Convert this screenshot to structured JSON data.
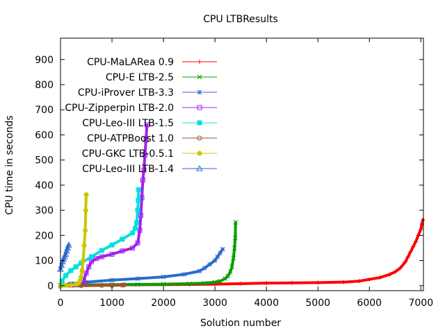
{
  "chart_data": {
    "type": "line",
    "title": "CPU LTBResults",
    "xlabel": "Solution number",
    "ylabel": "CPU time in seconds",
    "xlim": [
      0,
      7050
    ],
    "ylim": [
      -20,
      985
    ],
    "x_ticks": [
      0,
      1000,
      2000,
      3000,
      4000,
      5000,
      6000,
      7000
    ],
    "y_ticks": [
      0,
      100,
      200,
      300,
      400,
      500,
      600,
      700,
      800,
      900
    ],
    "legend_position": "top-left",
    "grid": false,
    "series": [
      {
        "name": "CPU-MaLARea 0.9",
        "color": "#ff0000",
        "marker": "plus",
        "x": [
          0,
          500,
          1000,
          2000,
          2500,
          3000,
          3500,
          4000,
          4500,
          5000,
          5500,
          5800,
          6000,
          6200,
          6400,
          6500,
          6600,
          6700,
          6750,
          6800,
          6850,
          6900,
          6950,
          7000,
          7020,
          7040
        ],
        "y": [
          0,
          2,
          3,
          4,
          5,
          6,
          8,
          10,
          11,
          12,
          14,
          18,
          25,
          32,
          45,
          55,
          70,
          95,
          115,
          135,
          155,
          175,
          200,
          225,
          245,
          262
        ]
      },
      {
        "name": "CPU-E LTB-2.5",
        "color": "#00a000",
        "marker": "x",
        "x": [
          0,
          300,
          500,
          1000,
          1500,
          2000,
          2500,
          2800,
          3000,
          3100,
          3200,
          3250,
          3300,
          3330,
          3360,
          3380,
          3395,
          3400
        ],
        "y": [
          0,
          2,
          3,
          4,
          5,
          6,
          8,
          10,
          14,
          18,
          28,
          38,
          55,
          75,
          110,
          150,
          190,
          252
        ]
      },
      {
        "name": "CPU-iProver LTB-3.3",
        "color": "#2a6ad0",
        "marker": "star",
        "x": [
          0,
          200,
          500,
          1000,
          1500,
          2000,
          2400,
          2700,
          2800,
          2900,
          3000,
          3050,
          3100,
          3150
        ],
        "y": [
          0,
          8,
          14,
          22,
          28,
          35,
          45,
          58,
          70,
          85,
          100,
          115,
          130,
          145
        ]
      },
      {
        "name": "CPU-Zipperpin LTB-2.0",
        "color": "#a020f0",
        "marker": "square-open",
        "x": [
          0,
          200,
          300,
          380,
          420,
          450,
          500,
          550,
          600,
          700,
          800,
          1000,
          1200,
          1400,
          1500,
          1540,
          1560,
          1580,
          1600,
          1620,
          1640,
          1660,
          1680
        ],
        "y": [
          0,
          2,
          3,
          5,
          10,
          20,
          50,
          75,
          95,
          108,
          115,
          125,
          138,
          150,
          170,
          220,
          280,
          350,
          420,
          460,
          520,
          580,
          640
        ]
      },
      {
        "name": "CPU-Leo-III LTB-1.5",
        "color": "#00e0e0",
        "marker": "square-filled",
        "x": [
          0,
          30,
          100,
          200,
          300,
          400,
          600,
          800,
          1000,
          1200,
          1400,
          1450,
          1480,
          1500,
          1510,
          1520
        ],
        "y": [
          0,
          18,
          40,
          60,
          75,
          90,
          115,
          140,
          162,
          185,
          210,
          228,
          250,
          300,
          340,
          382
        ]
      },
      {
        "name": "CPU-ATPBoost 1.0",
        "color": "#a0522d",
        "marker": "circle-open",
        "x": [
          0,
          400,
          800,
          1000,
          1200,
          1240
        ],
        "y": [
          0,
          0,
          1,
          1,
          2,
          3
        ]
      },
      {
        "name": "CPU-GKC LTB-0.5.1",
        "color": "#c8c800",
        "marker": "circle-filled",
        "x": [
          0,
          100,
          200,
          300,
          350,
          380,
          400,
          420,
          440,
          460,
          480,
          490,
          500
        ],
        "y": [
          0,
          1,
          2,
          5,
          10,
          20,
          35,
          60,
          100,
          160,
          220,
          300,
          362
        ]
      },
      {
        "name": "CPU-Leo-III LTB-1.4",
        "color": "#2a6ad0",
        "marker": "triangle-open",
        "x": [
          0,
          20,
          40,
          60,
          80,
          100,
          120,
          140,
          160
        ],
        "y": [
          65,
          80,
          95,
          105,
          115,
          125,
          138,
          150,
          162
        ]
      }
    ]
  }
}
